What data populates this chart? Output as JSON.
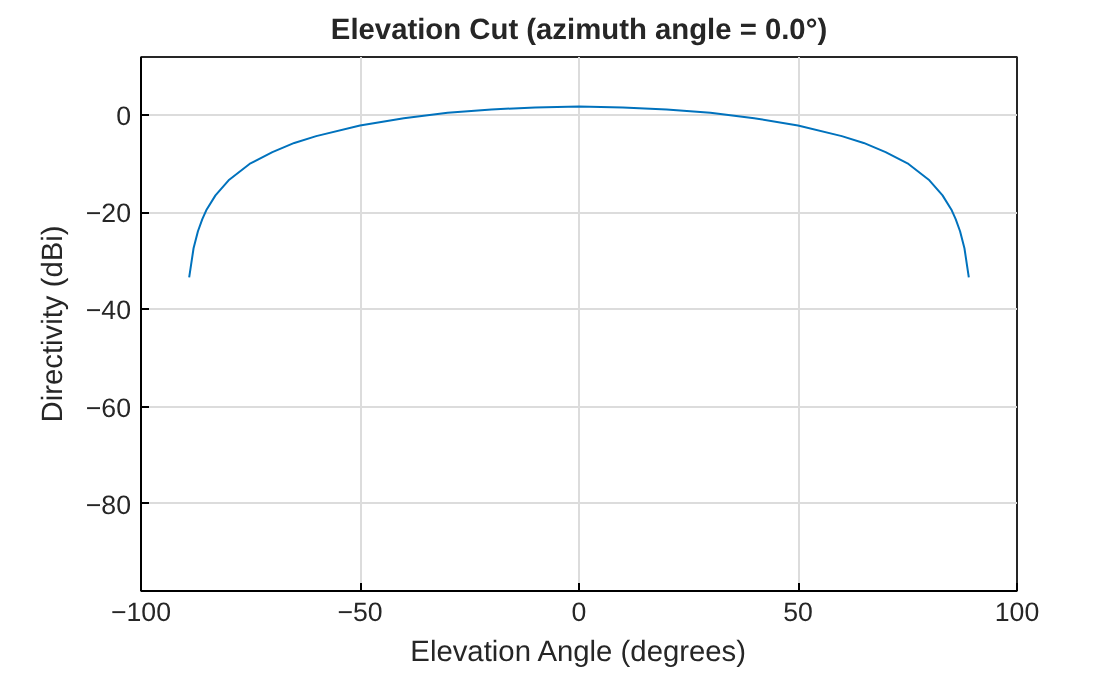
{
  "chart_data": {
    "type": "line",
    "title": "Elevation Cut (azimuth angle = 0.0°)",
    "xlabel": "Elevation Angle (degrees)",
    "ylabel": "Directivity (dBi)",
    "x": [
      -89,
      -88,
      -87,
      -86,
      -85,
      -83,
      -80,
      -75,
      -70,
      -65,
      -60,
      -50,
      -40,
      -30,
      -20,
      -10,
      0,
      10,
      20,
      30,
      40,
      50,
      60,
      65,
      70,
      75,
      80,
      83,
      85,
      86,
      87,
      88,
      89
    ],
    "series": [
      {
        "color": "#0072bd",
        "values": [
          -33.4,
          -27.4,
          -23.9,
          -21.4,
          -19.4,
          -16.5,
          -13.4,
          -9.9,
          -7.6,
          -5.7,
          -4.3,
          -2.1,
          -0.6,
          0.5,
          1.2,
          1.6,
          1.8,
          1.6,
          1.2,
          0.5,
          -0.6,
          -2.1,
          -4.3,
          -5.7,
          -7.6,
          -9.9,
          -13.4,
          -16.5,
          -19.4,
          -21.4,
          -23.9,
          -27.4,
          -33.4
        ]
      }
    ],
    "xlim": [
      -100,
      100
    ],
    "ylim": [
      -98,
      12
    ],
    "xticks": [
      -100,
      -50,
      0,
      50,
      100
    ],
    "yticks": [
      -80,
      -60,
      -40,
      -20,
      0
    ],
    "grid": true,
    "marker": "none",
    "line_style": "solid"
  }
}
